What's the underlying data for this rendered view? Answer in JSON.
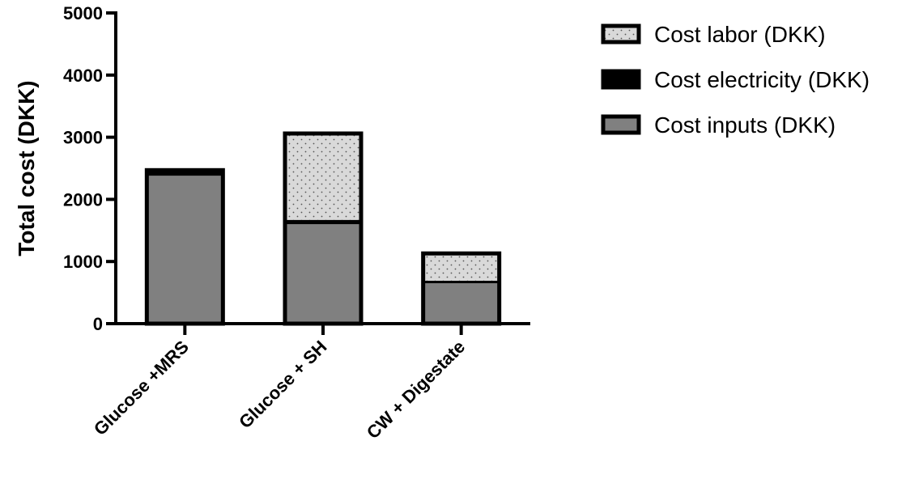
{
  "chart_data": {
    "type": "bar",
    "stacked": true,
    "ylabel": "Total cost (DKK)",
    "xlabel": "",
    "ylim": [
      0,
      5000
    ],
    "yticks": [
      0,
      1000,
      2000,
      3000,
      4000,
      5000
    ],
    "categories": [
      "Glucose +MRS",
      "Glucose + SH",
      "CW + Digestate"
    ],
    "series": [
      {
        "name": "Cost inputs (DKK)",
        "values": [
          2380,
          1600,
          650
        ],
        "color": "#808080",
        "pattern": "solid"
      },
      {
        "name": "Cost electricity (DKK)",
        "values": [
          90,
          70,
          40
        ],
        "color": "#000000",
        "pattern": "solid"
      },
      {
        "name": "Cost labor (DKK)",
        "values": [
          0,
          1390,
          440
        ],
        "color": "#d9d9d9",
        "pattern": "dotted"
      }
    ],
    "legend": {
      "position": "top-right",
      "order": [
        "Cost labor (DKK)",
        "Cost electricity (DKK)",
        "Cost inputs (DKK)"
      ]
    },
    "grid": false
  }
}
